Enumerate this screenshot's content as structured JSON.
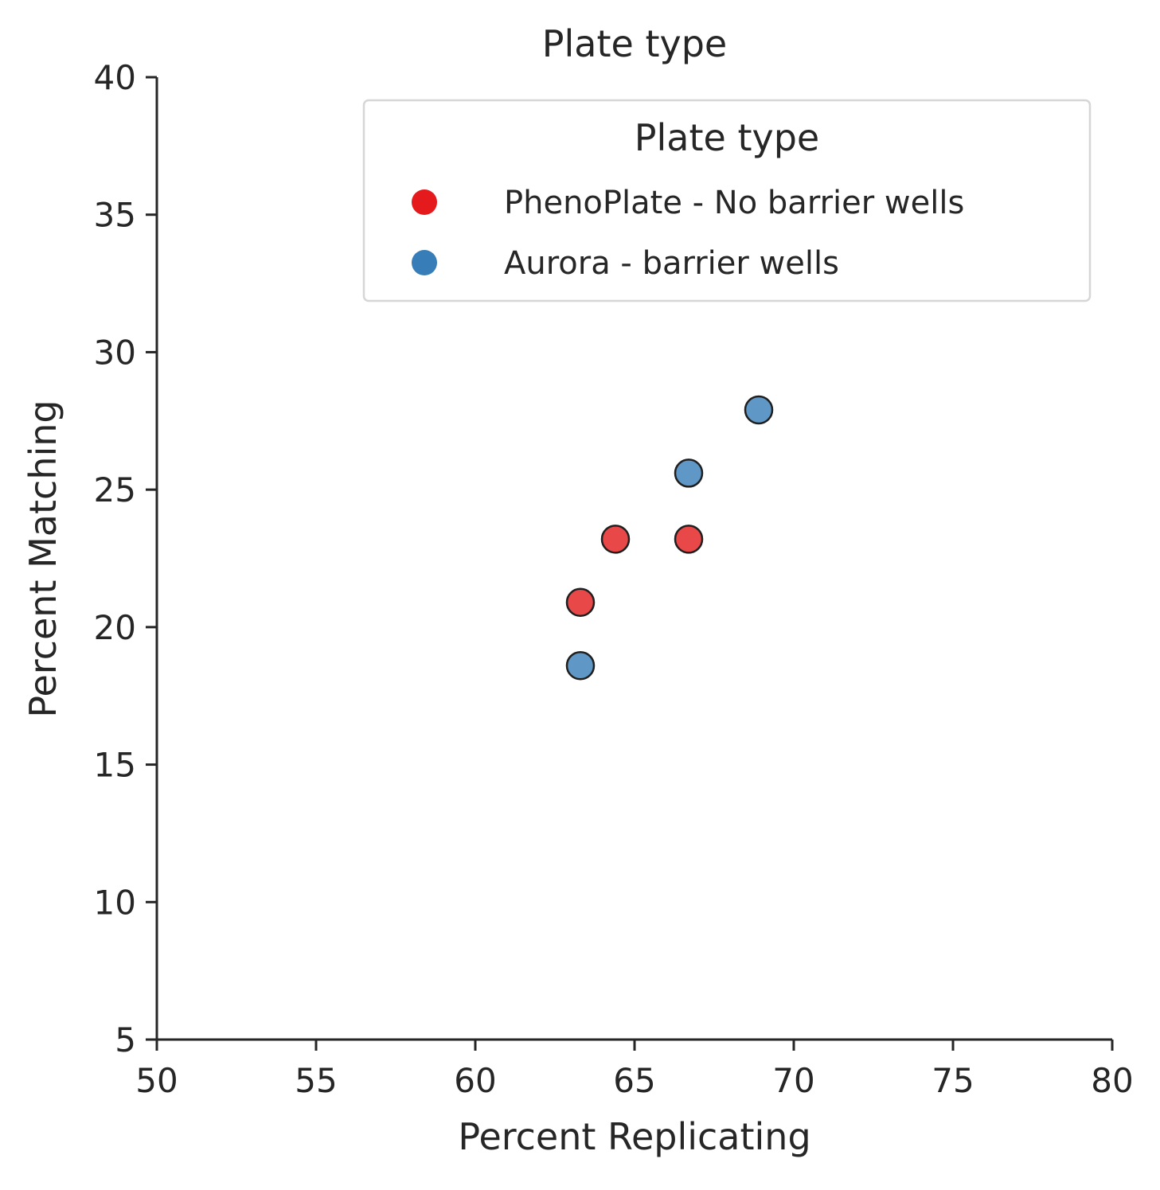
{
  "chart_data": {
    "type": "scatter",
    "title": "Plate type",
    "xlabel": "Percent Replicating",
    "ylabel": "Percent Matching",
    "xlim": [
      50,
      80
    ],
    "ylim": [
      5,
      40
    ],
    "xticks": [
      50,
      55,
      60,
      65,
      70,
      75,
      80
    ],
    "yticks": [
      5,
      10,
      15,
      20,
      25,
      30,
      35,
      40
    ],
    "grid": false,
    "legend": {
      "title": "Plate type",
      "placement": "upper-right"
    },
    "series": [
      {
        "name": "PhenoPlate - No barrier wells",
        "color": "#e41a1c",
        "points": [
          {
            "x": 63.3,
            "y": 20.9
          },
          {
            "x": 64.4,
            "y": 23.2
          },
          {
            "x": 66.7,
            "y": 23.2
          }
        ]
      },
      {
        "name": "Aurora - barrier wells",
        "color": "#377eb8",
        "points": [
          {
            "x": 63.3,
            "y": 18.6
          },
          {
            "x": 66.7,
            "y": 25.6
          },
          {
            "x": 68.9,
            "y": 27.9
          }
        ]
      }
    ]
  }
}
